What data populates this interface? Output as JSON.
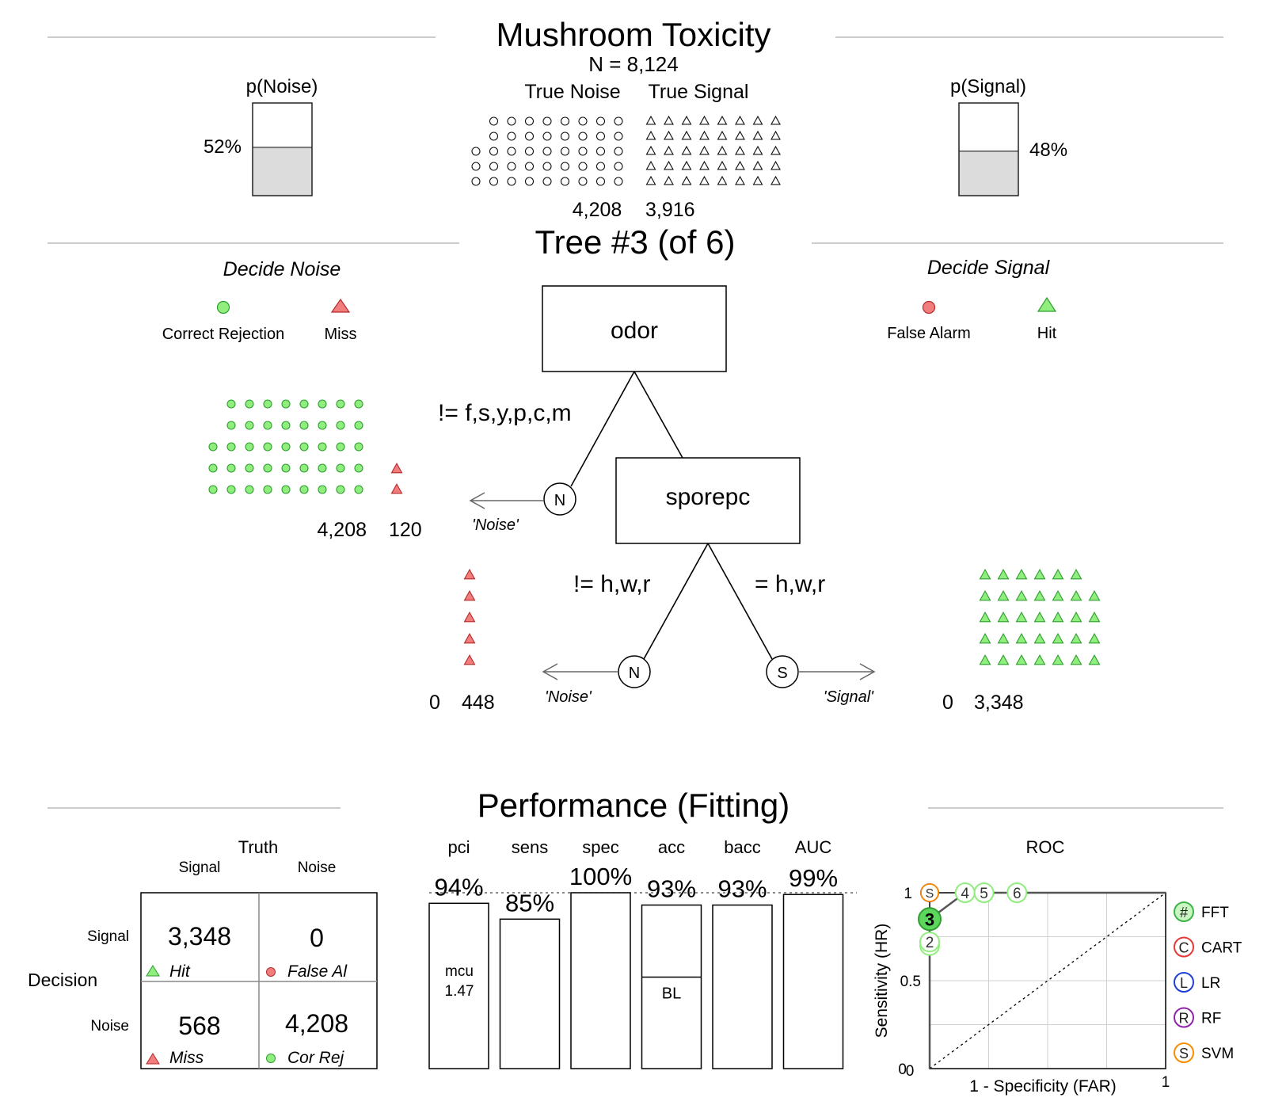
{
  "title": "Mushroom Toxicity",
  "n_label": "N = 8,124",
  "true_noise_label": "True Noise",
  "true_signal_label": "True Signal",
  "true_noise_count": "4,208",
  "true_signal_count": "3,916",
  "p_noise": {
    "label": "p(Noise)",
    "pct_text": "52%",
    "value": 0.52
  },
  "p_signal": {
    "label": "p(Signal)",
    "pct_text": "48%",
    "value": 0.48
  },
  "tree_title": "Tree #3 (of 6)",
  "decide_noise": {
    "heading": "Decide Noise",
    "legend_cr": "Correct Rejection",
    "legend_miss": "Miss"
  },
  "decide_signal": {
    "heading": "Decide Signal",
    "legend_fa": "False Alarm",
    "legend_hit": "Hit"
  },
  "tree": {
    "node1": "odor",
    "node1_branch": "!= f,s,y,p,c,m",
    "node2": "sporepc",
    "node2_left_branch": "!= h,w,r",
    "node2_right_branch": "= h,w,r",
    "exit_noise_letter": "N",
    "exit_signal_letter": "S",
    "exit_noise_label": "'Noise'",
    "exit_signal_label": "'Signal'",
    "exit1_counts": [
      "4,208",
      "120"
    ],
    "exit2_counts": [
      "0",
      "448"
    ],
    "exit3_counts": [
      "0",
      "3,348"
    ]
  },
  "performance": {
    "title": "Performance (Fitting)",
    "confusion": {
      "truth_label": "Truth",
      "decision_label": "Decision",
      "col_signal": "Signal",
      "col_noise": "Noise",
      "row_signal": "Signal",
      "row_noise": "Noise",
      "hit_value": "3,348",
      "hit_label": "Hit",
      "fa_value": "0",
      "fa_label": "False Al",
      "miss_value": "568",
      "miss_label": "Miss",
      "cr_value": "4,208",
      "cr_label": "Cor Rej"
    },
    "bars": [
      {
        "name": "pci",
        "value_text": "94%",
        "value": 0.94
      },
      {
        "name": "sens",
        "value_text": "85%",
        "value": 0.85
      },
      {
        "name": "spec",
        "value_text": "100%",
        "value": 1.0
      },
      {
        "name": "acc",
        "value_text": "93%",
        "value": 0.93
      },
      {
        "name": "bacc",
        "value_text": "93%",
        "value": 0.93
      },
      {
        "name": "AUC",
        "value_text": "99%",
        "value": 0.99
      }
    ],
    "mcu_label": "mcu",
    "mcu_value": "1.47",
    "bl_label": "BL",
    "acc_baseline": 0.52,
    "roc": {
      "title": "ROC",
      "xlabel": "1 - Specificity (FAR)",
      "ylabel": "Sensitivity (HR)",
      "x_ticks": [
        "0",
        "1"
      ],
      "y_ticks": [
        "0",
        "0.5",
        "1"
      ],
      "legend": [
        {
          "letter": "#",
          "name": "FFT",
          "color": "#3cb44b"
        },
        {
          "letter": "C",
          "name": "CART",
          "color": "#e53935"
        },
        {
          "letter": "L",
          "name": "LR",
          "color": "#1e3fd8"
        },
        {
          "letter": "R",
          "name": "RF",
          "color": "#8e24aa"
        },
        {
          "letter": "S",
          "name": "SVM",
          "color": "#fb8c00"
        }
      ]
    }
  },
  "chart_data": {
    "type": "scatter",
    "title": "ROC",
    "xlabel": "1 - Specificity (FAR)",
    "ylabel": "Sensitivity (HR)",
    "xlim": [
      0,
      1
    ],
    "ylim": [
      0,
      1
    ],
    "series": [
      {
        "name": "FFT",
        "points": [
          {
            "label": "1",
            "x": 0.0,
            "y": 0.7
          },
          {
            "label": "2",
            "x": 0.0,
            "y": 0.72
          },
          {
            "label": "3",
            "x": 0.0,
            "y": 0.85
          },
          {
            "label": "4",
            "x": 0.15,
            "y": 1.0
          },
          {
            "label": "5",
            "x": 0.23,
            "y": 1.0
          },
          {
            "label": "6",
            "x": 0.37,
            "y": 1.0
          }
        ]
      },
      {
        "name": "CART",
        "points": [
          {
            "label": "C",
            "x": 0.0,
            "y": 1.0
          }
        ]
      },
      {
        "name": "LR",
        "points": [
          {
            "label": "L",
            "x": 0.0,
            "y": 1.0
          }
        ]
      },
      {
        "name": "RF",
        "points": [
          {
            "label": "R",
            "x": 0.0,
            "y": 1.0
          }
        ]
      },
      {
        "name": "SVM",
        "points": [
          {
            "label": "S",
            "x": 0.0,
            "y": 1.0
          }
        ]
      }
    ]
  }
}
